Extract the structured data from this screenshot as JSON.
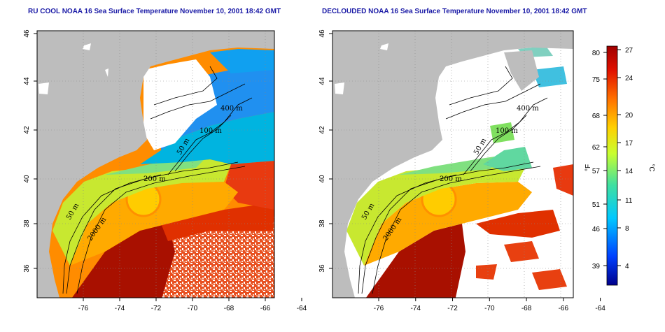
{
  "panels": [
    {
      "title": "RU COOL NOAA 16 Sea Surface Temperature November 10, 2001 18:42 GMT",
      "contour_labels": [
        "400 m",
        "100 m",
        "50 m",
        "200 m",
        "50 m",
        "2000 m"
      ],
      "x_ticks": [
        "-76",
        "-74",
        "-72",
        "-70",
        "-68",
        "-66",
        "-64"
      ],
      "y_ticks": [
        "36",
        "38",
        "40",
        "42",
        "44",
        "46"
      ]
    },
    {
      "title": "DECLOUDED NOAA 16 Sea Surface Temperature November 10, 2001 18:42 GMT",
      "contour_labels": [
        "400 m",
        "100 m",
        "50 m",
        "200 m",
        "50 m",
        "2000 m"
      ],
      "x_ticks": [
        "-76",
        "-74",
        "-72",
        "-70",
        "-68",
        "-66",
        "-64"
      ],
      "y_ticks": [
        "36",
        "38",
        "40",
        "42",
        "44",
        "46"
      ]
    }
  ],
  "colorbar": {
    "unit_left": "°F",
    "unit_right": "°C",
    "fahrenheit_ticks": [
      "80",
      "75",
      "68",
      "62",
      "57",
      "51",
      "46",
      "39"
    ],
    "celsius_ticks": [
      "27",
      "24",
      "20",
      "17",
      "14",
      "11",
      "8",
      "4"
    ],
    "colors": [
      "#00008b",
      "#0040ff",
      "#00c8ff",
      "#40e0a0",
      "#c8ff30",
      "#ffd000",
      "#ff7000",
      "#e01000",
      "#a00000"
    ]
  },
  "colors": {
    "land": "#bdbdbd",
    "cloud": "#ffffff",
    "title": "#1a1aa6"
  }
}
